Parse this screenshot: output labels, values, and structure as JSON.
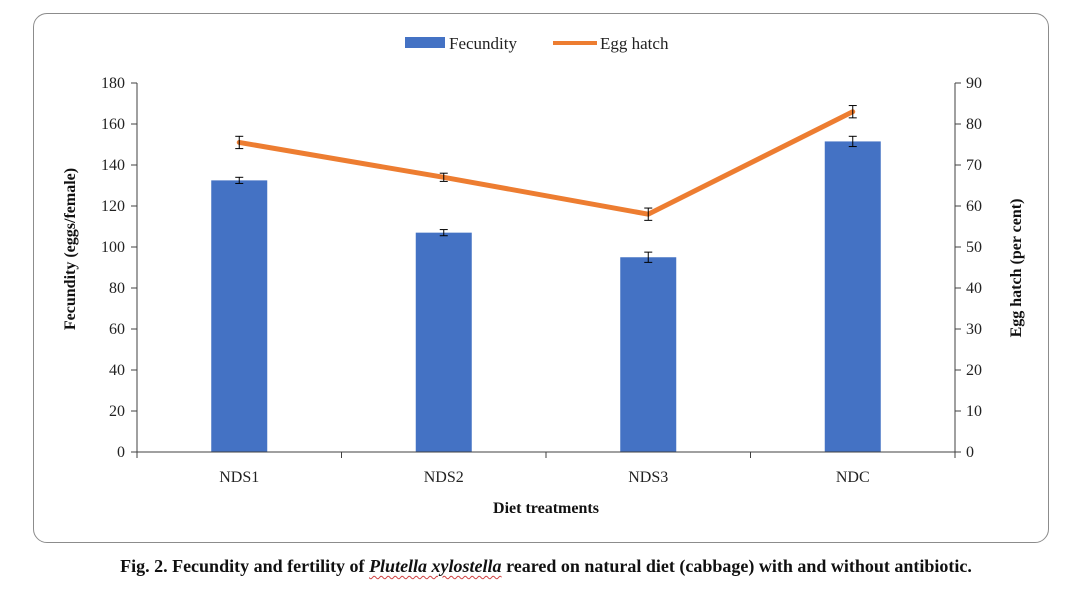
{
  "chart_data": {
    "type": "bar+line",
    "categories": [
      "NDS1",
      "NDS2",
      "NDS3",
      "NDC"
    ],
    "series": [
      {
        "name": "Fecundity",
        "type": "bar",
        "axis": "left",
        "color": "#4472C4",
        "values": [
          132.5,
          107,
          95,
          151.5
        ],
        "errors": [
          1.5,
          1.5,
          2.5,
          2.5
        ]
      },
      {
        "name": "Egg hatch",
        "type": "line",
        "axis": "right",
        "color": "#ED7D31",
        "values": [
          75.5,
          67,
          58,
          83
        ],
        "errors": [
          1.5,
          1,
          1.5,
          1.5
        ]
      }
    ],
    "xlabel": "Diet treatments",
    "ylabel_left": "Fecundity (eggs/female)",
    "ylabel_right": "Egg hatch (per cent)",
    "ylim_left": [
      0,
      180
    ],
    "yticks_left": [
      0,
      20,
      40,
      60,
      80,
      100,
      120,
      140,
      160,
      180
    ],
    "ylim_right": [
      0,
      90
    ],
    "yticks_right": [
      0,
      10,
      20,
      30,
      40,
      50,
      60,
      70,
      80,
      90
    ],
    "grid": false,
    "legend_position": "top-center"
  },
  "caption": {
    "prefix": "Fig. 2. Fecundity and fertility of ",
    "species": "Plutella xylostella",
    "suffix": " reared on natural diet (cabbage) with and without antibiotic."
  }
}
